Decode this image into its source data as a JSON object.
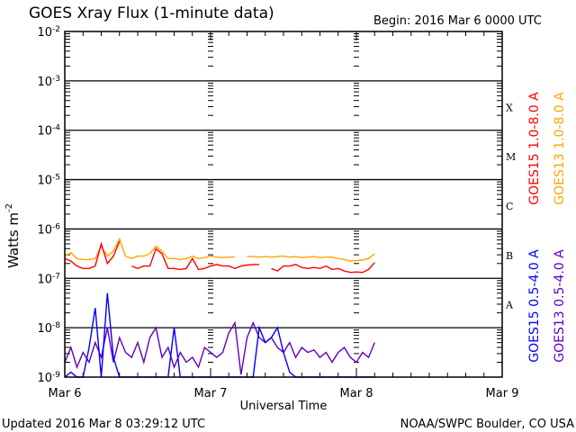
{
  "chart_data": {
    "type": "line",
    "title": "GOES Xray Flux (1-minute data)",
    "begin_label": "Begin:  2016 Mar 6 0000 UTC",
    "xlabel": "Universal Time",
    "ylabel": "Watts m",
    "ylabel_exp": "-2",
    "x_unit": "hours since 2016 Mar 6 0000 UTC",
    "xlim": [
      0,
      72
    ],
    "ylim_log10": [
      -9,
      -2
    ],
    "x_ticks": [
      {
        "hour": 0,
        "label": "Mar 6"
      },
      {
        "hour": 24,
        "label": "Mar 7"
      },
      {
        "hour": 48,
        "label": "Mar 8"
      },
      {
        "hour": 72,
        "label": "Mar 9"
      }
    ],
    "y_ticks": [
      {
        "exp": -9,
        "label": "10",
        "sup": "-9"
      },
      {
        "exp": -8,
        "label": "10",
        "sup": "-8"
      },
      {
        "exp": -7,
        "label": "10",
        "sup": "-7"
      },
      {
        "exp": -6,
        "label": "10",
        "sup": "-6"
      },
      {
        "exp": -5,
        "label": "10",
        "sup": "-5"
      },
      {
        "exp": -4,
        "label": "10",
        "sup": "-4"
      },
      {
        "exp": -3,
        "label": "10",
        "sup": "-3"
      },
      {
        "exp": -2,
        "label": "10",
        "sup": "-2"
      }
    ],
    "flare_classes": [
      {
        "label": "A",
        "band": [
          -8,
          -7
        ]
      },
      {
        "label": "B",
        "band": [
          -7,
          -6
        ]
      },
      {
        "label": "C",
        "band": [
          -6,
          -5
        ]
      },
      {
        "label": "M",
        "band": [
          -5,
          -4
        ]
      },
      {
        "label": "X",
        "band": [
          -4,
          -3
        ]
      }
    ],
    "grid": "horizontal lines at each decade from 1e-8 to 1e-3",
    "x_hours": [
      0,
      1,
      2,
      3,
      4,
      5,
      6,
      7,
      8,
      9,
      10,
      11,
      12,
      13,
      14,
      15,
      16,
      17,
      18,
      19,
      20,
      21,
      22,
      23,
      24,
      25,
      26,
      27,
      28,
      29,
      30,
      31,
      32,
      33,
      34,
      35,
      36,
      37,
      38,
      39,
      40,
      41,
      42,
      43,
      44,
      45,
      46,
      47,
      48,
      49,
      50,
      51
    ],
    "series": [
      {
        "name": "GOES15 1.0-8.0 A",
        "color": "#ff0000",
        "values_log10": [
          -6.6,
          -6.65,
          -6.75,
          -6.8,
          -6.8,
          -6.75,
          -6.3,
          -6.7,
          -6.55,
          -6.25,
          null,
          -6.75,
          -6.8,
          -6.75,
          -6.75,
          -6.4,
          -6.5,
          -6.8,
          -6.8,
          -6.82,
          -6.8,
          -6.6,
          -6.82,
          -6.8,
          -6.75,
          -6.72,
          -6.75,
          -6.75,
          -6.8,
          -6.75,
          -6.73,
          -6.72,
          -6.72,
          null,
          -6.8,
          -6.85,
          -6.75,
          -6.75,
          -6.72,
          -6.78,
          -6.8,
          -6.78,
          -6.8,
          -6.75,
          -6.82,
          -6.8,
          -6.85,
          -6.88,
          -6.87,
          -6.88,
          -6.82,
          -6.68
        ]
      },
      {
        "name": "GOES13 1.0-8.0 A",
        "color": "#ffa500",
        "values_log10": [
          -6.55,
          -6.48,
          -6.6,
          -6.62,
          -6.62,
          -6.6,
          -6.35,
          -6.55,
          -6.45,
          -6.2,
          -6.55,
          -6.6,
          -6.55,
          -6.55,
          -6.5,
          -6.35,
          -6.45,
          -6.6,
          -6.6,
          -6.62,
          -6.6,
          -6.55,
          -6.6,
          -6.58,
          -6.55,
          -6.57,
          -6.58,
          -6.57,
          -6.57,
          null,
          -6.56,
          -6.56,
          -6.57,
          -6.56,
          -6.57,
          -6.56,
          -6.55,
          -6.57,
          -6.56,
          -6.58,
          -6.57,
          -6.56,
          -6.58,
          -6.57,
          -6.57,
          -6.6,
          -6.62,
          -6.65,
          -6.64,
          -6.63,
          -6.6,
          -6.5
        ]
      },
      {
        "name": "GOES15 0.5-4.0 A",
        "color": "#0000ff",
        "values_log10": [
          -9,
          -8.9,
          -9,
          -9,
          -8.4,
          -7.6,
          -9,
          -7.3,
          -8.6,
          -9,
          -9,
          -9,
          -9,
          -9,
          -9,
          -9,
          -9,
          -9,
          -8.0,
          -9,
          -9,
          -9,
          -9,
          -9,
          -9,
          -9,
          -9,
          -9,
          -9,
          -9,
          -9,
          -9,
          -8.0,
          -8.3,
          -8.2,
          -8.0,
          -8.5,
          -8.9,
          -9,
          -9,
          -9,
          -9,
          -9,
          -9,
          -9,
          -9,
          -9,
          -9,
          -9,
          -9,
          -9,
          -9
        ]
      },
      {
        "name": "GOES13 0.5-4.0 A",
        "color": "#6000c0",
        "values_log10": [
          -8.7,
          -8.4,
          -8.8,
          -8.5,
          -8.7,
          -8.3,
          -8.6,
          -8.0,
          -8.7,
          -8.2,
          -8.5,
          -8.6,
          -8.3,
          -8.7,
          -8.2,
          -8.0,
          -8.6,
          -8.4,
          -8.8,
          -8.5,
          -8.7,
          -8.6,
          -8.8,
          -8.4,
          -8.5,
          -8.6,
          -8.5,
          -8.1,
          -7.9,
          -8.95,
          -8.2,
          -7.9,
          -8.2,
          -8.3,
          -8.2,
          -8.4,
          -8.5,
          -8.3,
          -8.6,
          -8.4,
          -8.5,
          -8.45,
          -8.6,
          -8.5,
          -8.7,
          -8.5,
          -8.4,
          -8.6,
          -8.7,
          -8.5,
          -8.6,
          -8.3
        ]
      }
    ],
    "legend_placement": "right, vertical text"
  },
  "footer": {
    "updated": "Updated 2016 Mar  8 03:29:12 UTC",
    "credit": "NOAA/SWPC Boulder, CO USA"
  }
}
